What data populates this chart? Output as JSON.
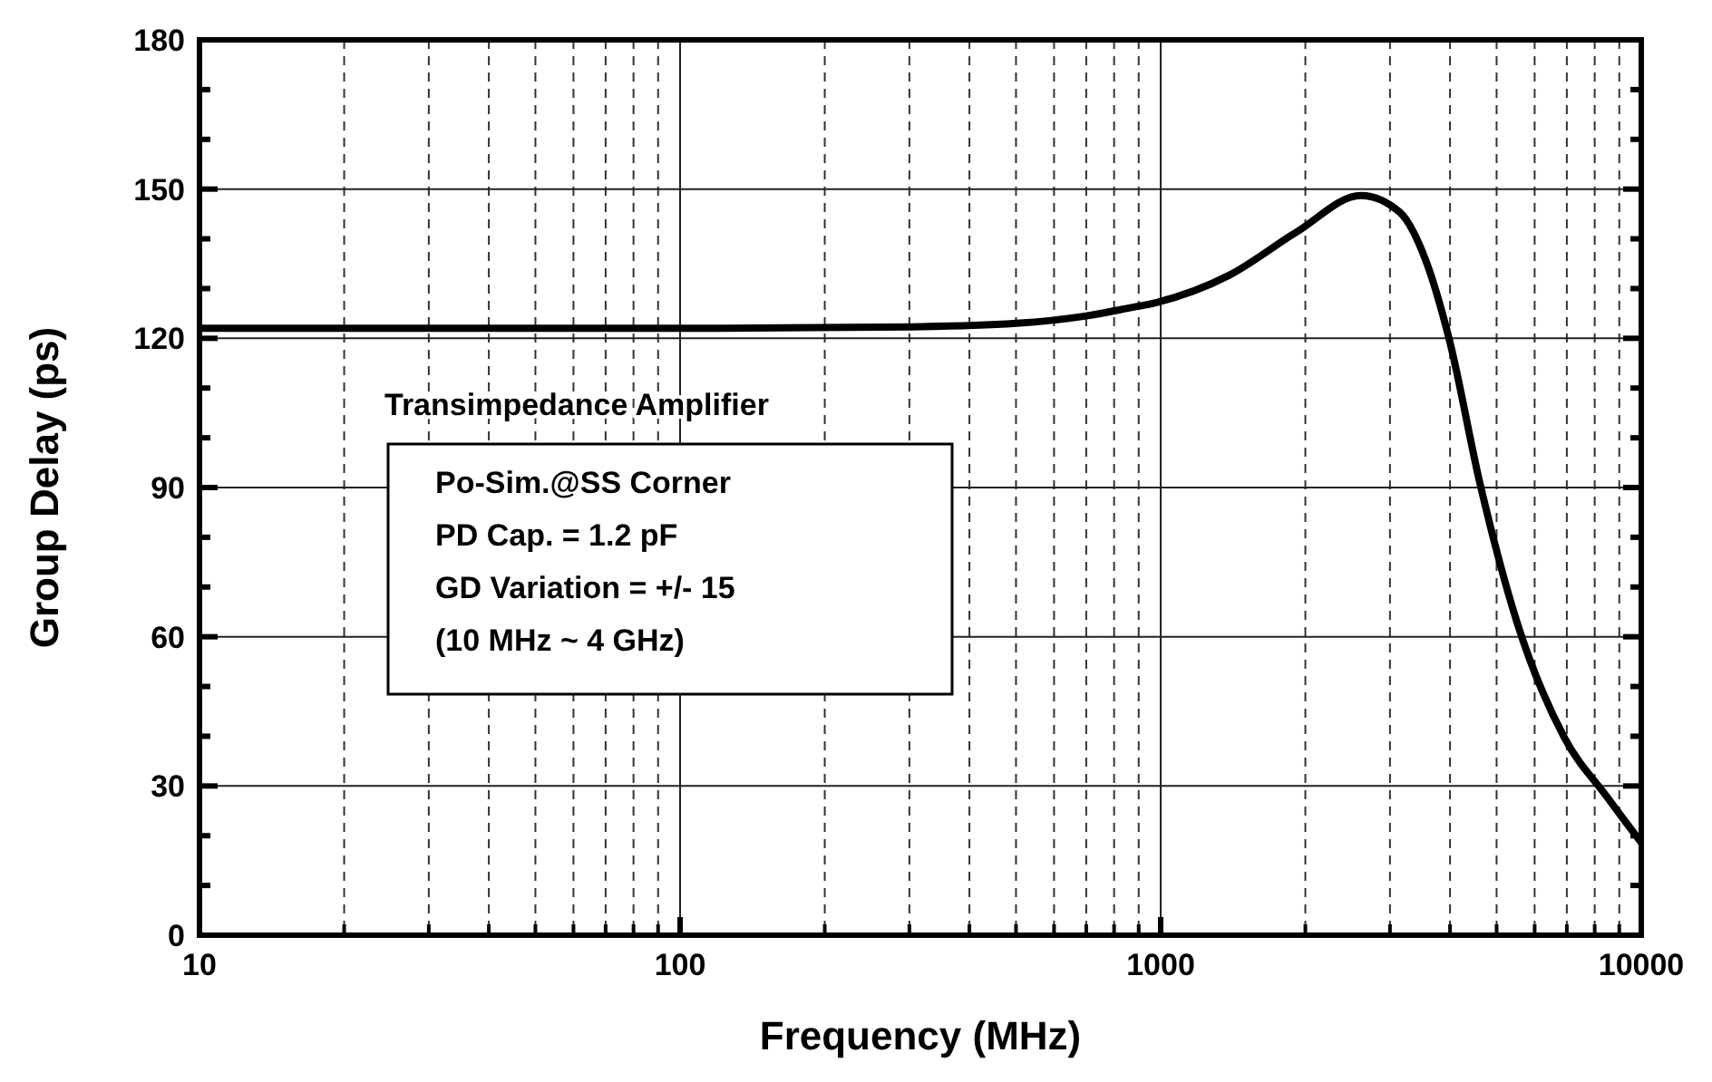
{
  "chart_data": {
    "type": "line",
    "xlabel": "Frequency (MHz)",
    "ylabel": "Group Delay (ps)",
    "log": "x",
    "xlim": [
      10,
      10000
    ],
    "xticks": [
      10,
      100,
      1000,
      10000
    ],
    "ylim": [
      0,
      180
    ],
    "yticks": [
      0,
      30,
      60,
      90,
      120,
      150,
      180
    ],
    "grid": true,
    "line_style": "solid",
    "annotations": [
      "Transimpedance Amplifier",
      "Po-Sim.@SS Corner\nPD Cap. = 1.2 pF\nGD Variation = +/- 15\n(10 MHz ~ 4 GHz)"
    ],
    "series": [
      {
        "color": "#000000",
        "x": [
          10,
          30,
          100,
          300,
          500,
          700,
          850,
          980,
          1390,
          1920,
          2610,
          3140,
          3550,
          3980,
          4620,
          5510,
          6920,
          8500,
          10000
        ],
        "values": [
          122,
          122,
          122,
          122.3,
          123,
          124.5,
          126,
          127.2,
          132.7,
          141.4,
          148.7,
          145.4,
          136,
          120,
          90.7,
          63,
          39.7,
          27.7,
          18.6
        ]
      }
    ]
  }
}
